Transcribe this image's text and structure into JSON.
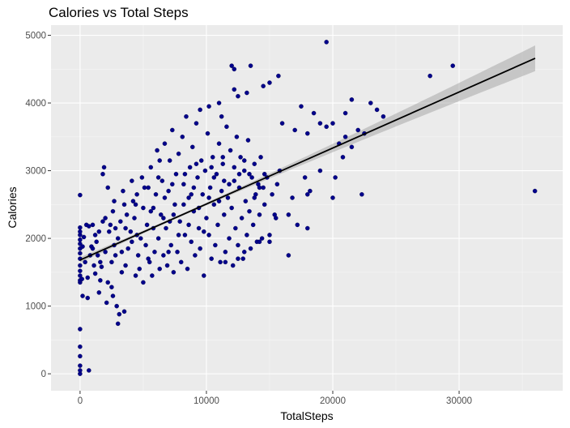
{
  "chart_data": {
    "type": "scatter",
    "title": "Calories vs Total Steps",
    "xlabel": "TotalSteps",
    "ylabel": "Calories",
    "xlim": [
      -2300,
      38200
    ],
    "ylim": [
      -250,
      5150
    ],
    "x_ticks": [
      0,
      10000,
      20000,
      30000
    ],
    "y_ticks": [
      0,
      1000,
      2000,
      3000,
      4000,
      5000
    ],
    "grid": true,
    "legend": "none",
    "point_color": "#00008B",
    "panel_color": "#EBEBEB",
    "trend": {
      "method": "linear",
      "start": [
        0,
        1680
      ],
      "end": [
        36019,
        4660
      ],
      "ci_halfwidth_start": 40,
      "ci_halfwidth_end": 190
    },
    "points": [
      [
        0,
        0
      ],
      [
        0,
        50
      ],
      [
        0,
        120
      ],
      [
        0,
        260
      ],
      [
        0,
        400
      ],
      [
        0,
        660
      ],
      [
        700,
        50
      ],
      [
        0,
        2640
      ],
      [
        0,
        1350
      ],
      [
        0,
        1380
      ],
      [
        0,
        1450
      ],
      [
        0,
        1520
      ],
      [
        0,
        1600
      ],
      [
        0,
        1700
      ],
      [
        0,
        1780
      ],
      [
        0,
        1850
      ],
      [
        0,
        1920
      ],
      [
        0,
        1980
      ],
      [
        0,
        2050
      ],
      [
        0,
        2100
      ],
      [
        0,
        2160
      ],
      [
        150,
        1400
      ],
      [
        200,
        1880
      ],
      [
        300,
        2020
      ],
      [
        400,
        1650
      ],
      [
        500,
        2200
      ],
      [
        600,
        1420
      ],
      [
        700,
        2180
      ],
      [
        800,
        1750
      ],
      [
        900,
        1880
      ],
      [
        1000,
        2200
      ],
      [
        1100,
        1600
      ],
      [
        1200,
        1480
      ],
      [
        1300,
        1950
      ],
      [
        1400,
        1750
      ],
      [
        1500,
        2100
      ],
      [
        1600,
        1380
      ],
      [
        1700,
        1580
      ],
      [
        1800,
        2950
      ],
      [
        1900,
        3050
      ],
      [
        2000,
        1800
      ],
      [
        200,
        1150
      ],
      [
        600,
        1120
      ],
      [
        1500,
        1200
      ],
      [
        2100,
        1050
      ],
      [
        2600,
        1150
      ],
      [
        2900,
        1000
      ],
      [
        3100,
        880
      ],
      [
        3500,
        920
      ],
      [
        3000,
        740
      ],
      [
        2500,
        1280
      ],
      [
        2200,
        1350
      ],
      [
        2500,
        1650
      ],
      [
        2700,
        1900
      ],
      [
        2300,
        2100
      ],
      [
        2400,
        2200
      ],
      [
        2600,
        2400
      ],
      [
        2800,
        1750
      ],
      [
        3000,
        2000
      ],
      [
        3200,
        2250
      ],
      [
        3300,
        1500
      ],
      [
        3400,
        2700
      ],
      [
        3600,
        1600
      ],
      [
        3800,
        1850
      ],
      [
        4000,
        2100
      ],
      [
        4200,
        2550
      ],
      [
        4400,
        1450
      ],
      [
        4600,
        1750
      ],
      [
        4800,
        2000
      ],
      [
        3500,
        2500
      ],
      [
        4100,
        2850
      ],
      [
        4300,
        2300
      ],
      [
        4500,
        2650
      ],
      [
        4700,
        1550
      ],
      [
        4900,
        2900
      ],
      [
        5000,
        1350
      ],
      [
        5200,
        1900
      ],
      [
        5300,
        2200
      ],
      [
        5400,
        2750
      ],
      [
        5500,
        1650
      ],
      [
        5600,
        3050
      ],
      [
        5700,
        1450
      ],
      [
        5800,
        2450
      ],
      [
        5900,
        1800
      ],
      [
        6000,
        2650
      ],
      [
        6100,
        3300
      ],
      [
        6200,
        2000
      ],
      [
        6300,
        1550
      ],
      [
        6400,
        2350
      ],
      [
        6500,
        2850
      ],
      [
        6600,
        1750
      ],
      [
        6700,
        3400
      ],
      [
        6800,
        2150
      ],
      [
        6900,
        1600
      ],
      [
        7000,
        2700
      ],
      [
        7100,
        3150
      ],
      [
        7200,
        1900
      ],
      [
        7300,
        3600
      ],
      [
        7400,
        1500
      ],
      [
        7500,
        2500
      ],
      [
        7600,
        2950
      ],
      [
        7700,
        1800
      ],
      [
        7800,
        3250
      ],
      [
        7900,
        2250
      ],
      [
        8000,
        1650
      ],
      [
        8100,
        3500
      ],
      [
        8200,
        2800
      ],
      [
        8300,
        2050
      ],
      [
        8400,
        3800
      ],
      [
        8500,
        1550
      ],
      [
        8600,
        2600
      ],
      [
        8700,
        3050
      ],
      [
        8800,
        1950
      ],
      [
        8900,
        3350
      ],
      [
        9000,
        2400
      ],
      [
        9100,
        1750
      ],
      [
        9200,
        3700
      ],
      [
        9300,
        2900
      ],
      [
        9400,
        2150
      ],
      [
        9500,
        1850
      ],
      [
        9600,
        3150
      ],
      [
        9700,
        2650
      ],
      [
        9800,
        1450
      ],
      [
        9900,
        3000
      ],
      [
        10000,
        2300
      ],
      [
        10100,
        3550
      ],
      [
        10200,
        2050
      ],
      [
        10300,
        2750
      ],
      [
        10400,
        1700
      ],
      [
        10500,
        3200
      ],
      [
        10600,
        2500
      ],
      [
        10700,
        1900
      ],
      [
        10800,
        2950
      ],
      [
        10900,
        2200
      ],
      [
        11000,
        3400
      ],
      [
        11100,
        1650
      ],
      [
        11200,
        2700
      ],
      [
        11300,
        3100
      ],
      [
        11400,
        2350
      ],
      [
        11500,
        1800
      ],
      [
        11600,
        3650
      ],
      [
        11700,
        2600
      ],
      [
        11800,
        2000
      ],
      [
        11900,
        3300
      ],
      [
        12000,
        2450
      ],
      [
        12100,
        1600
      ],
      [
        12200,
        2850
      ],
      [
        12300,
        2150
      ],
      [
        12400,
        3500
      ],
      [
        12500,
        1900
      ],
      [
        12600,
        2750
      ],
      [
        12700,
        3200
      ],
      [
        12800,
        2300
      ],
      [
        12900,
        1700
      ],
      [
        13000,
        3000
      ],
      [
        13100,
        2550
      ],
      [
        13200,
        2050
      ],
      [
        13300,
        3450
      ],
      [
        13400,
        2400
      ],
      [
        13500,
        1850
      ],
      [
        13600,
        2900
      ],
      [
        13700,
        2200
      ],
      [
        13800,
        3100
      ],
      [
        13900,
        2650
      ],
      [
        14000,
        1950
      ],
      [
        14100,
        2800
      ],
      [
        14200,
        2350
      ],
      [
        14300,
        3200
      ],
      [
        14400,
        2000
      ],
      [
        14500,
        2750
      ],
      [
        14600,
        2500
      ],
      [
        14800,
        2900
      ],
      [
        15000,
        2050
      ],
      [
        15200,
        2650
      ],
      [
        15400,
        2350
      ],
      [
        15600,
        2800
      ],
      [
        15800,
        3000
      ],
      [
        12000,
        4550
      ],
      [
        12200,
        4500
      ],
      [
        13500,
        4550
      ],
      [
        14500,
        4250
      ],
      [
        15700,
        4400
      ],
      [
        15000,
        4300
      ],
      [
        12200,
        4200
      ],
      [
        12500,
        4100
      ],
      [
        13200,
        4150
      ],
      [
        11000,
        4000
      ],
      [
        11200,
        3800
      ],
      [
        10200,
        3950
      ],
      [
        9500,
        3900
      ],
      [
        16000,
        3700
      ],
      [
        17000,
        3600
      ],
      [
        17500,
        3950
      ],
      [
        18000,
        3550
      ],
      [
        18500,
        3850
      ],
      [
        19000,
        3700
      ],
      [
        19500,
        3650
      ],
      [
        20000,
        3700
      ],
      [
        20500,
        3400
      ],
      [
        21000,
        3500
      ],
      [
        21500,
        3350
      ],
      [
        22000,
        3600
      ],
      [
        22500,
        3550
      ],
      [
        23000,
        4000
      ],
      [
        23500,
        3900
      ],
      [
        24000,
        3800
      ],
      [
        21000,
        3850
      ],
      [
        21500,
        4050
      ],
      [
        19500,
        4900
      ],
      [
        16500,
        2350
      ],
      [
        17200,
        2200
      ],
      [
        17800,
        2900
      ],
      [
        18200,
        2700
      ],
      [
        16800,
        2600
      ],
      [
        15500,
        2300
      ],
      [
        15000,
        1950
      ],
      [
        14200,
        1950
      ],
      [
        13000,
        1800
      ],
      [
        12500,
        1700
      ],
      [
        11500,
        1650
      ],
      [
        16500,
        1750
      ],
      [
        18000,
        2150
      ],
      [
        18000,
        2650
      ],
      [
        19000,
        3000
      ],
      [
        20000,
        2600
      ],
      [
        22300,
        2650
      ],
      [
        20200,
        2900
      ],
      [
        20800,
        3200
      ],
      [
        27700,
        4400
      ],
      [
        29500,
        4550
      ],
      [
        36000,
        2700
      ],
      [
        1200,
        2050
      ],
      [
        1800,
        2250
      ],
      [
        2200,
        2750
      ],
      [
        2000,
        2300
      ],
      [
        1000,
        1850
      ],
      [
        1600,
        1650
      ],
      [
        2800,
        2150
      ],
      [
        3300,
        1800
      ],
      [
        3700,
        2350
      ],
      [
        4100,
        1950
      ],
      [
        4500,
        2050
      ],
      [
        5000,
        2450
      ],
      [
        5400,
        1700
      ],
      [
        5800,
        2150
      ],
      [
        6200,
        2900
      ],
      [
        6600,
        2300
      ],
      [
        7000,
        1800
      ],
      [
        7400,
        2350
      ],
      [
        7800,
        2050
      ],
      [
        8200,
        2500
      ],
      [
        8600,
        2200
      ],
      [
        9000,
        2750
      ],
      [
        9400,
        2450
      ],
      [
        9800,
        2100
      ],
      [
        10200,
        2600
      ],
      [
        10600,
        2900
      ],
      [
        11000,
        2550
      ],
      [
        11400,
        2850
      ],
      [
        11800,
        2800
      ],
      [
        12200,
        3050
      ],
      [
        12600,
        2950
      ],
      [
        13000,
        3150
      ],
      [
        13400,
        2950
      ],
      [
        13800,
        2600
      ],
      [
        14200,
        2750
      ],
      [
        14600,
        2950
      ],
      [
        5100,
        2750
      ],
      [
        6300,
        3150
      ],
      [
        7300,
        2800
      ],
      [
        8300,
        2950
      ],
      [
        9200,
        3100
      ],
      [
        10400,
        3050
      ],
      [
        11300,
        3200
      ],
      [
        6700,
        2600
      ],
      [
        8800,
        2650
      ],
      [
        5600,
        2400
      ],
      [
        4400,
        2500
      ],
      [
        3600,
        2150
      ],
      [
        2700,
        2550
      ],
      [
        7100,
        2250
      ]
    ]
  }
}
